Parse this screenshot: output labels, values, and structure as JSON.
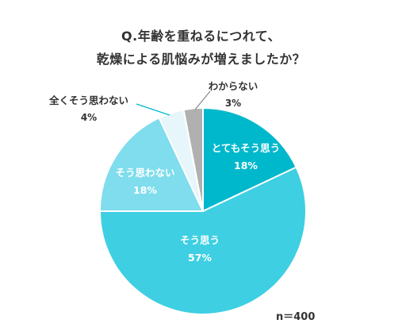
{
  "chart_data": {
    "type": "pie",
    "title_lines": [
      "Q.年齢を重ねるにつれて、",
      "乾燥による肌悩みが増えましたか？"
    ],
    "slices": [
      {
        "label": "とてもそう思う",
        "value": 18,
        "value_label": "18%",
        "color": "#00b8cc"
      },
      {
        "label": "そう思う",
        "value": 57,
        "value_label": "57%",
        "color": "#3ecfe3"
      },
      {
        "label": "そう思わない",
        "value": 18,
        "value_label": "18%",
        "color": "#7fdded"
      },
      {
        "label": "全くそう思わない",
        "value": 4,
        "value_label": "4%",
        "color": "#e6f6fa"
      },
      {
        "label": "わからない",
        "value": 3,
        "value_label": "3%",
        "color": "#b0b0b0"
      }
    ],
    "sample_size": "n＝400"
  }
}
